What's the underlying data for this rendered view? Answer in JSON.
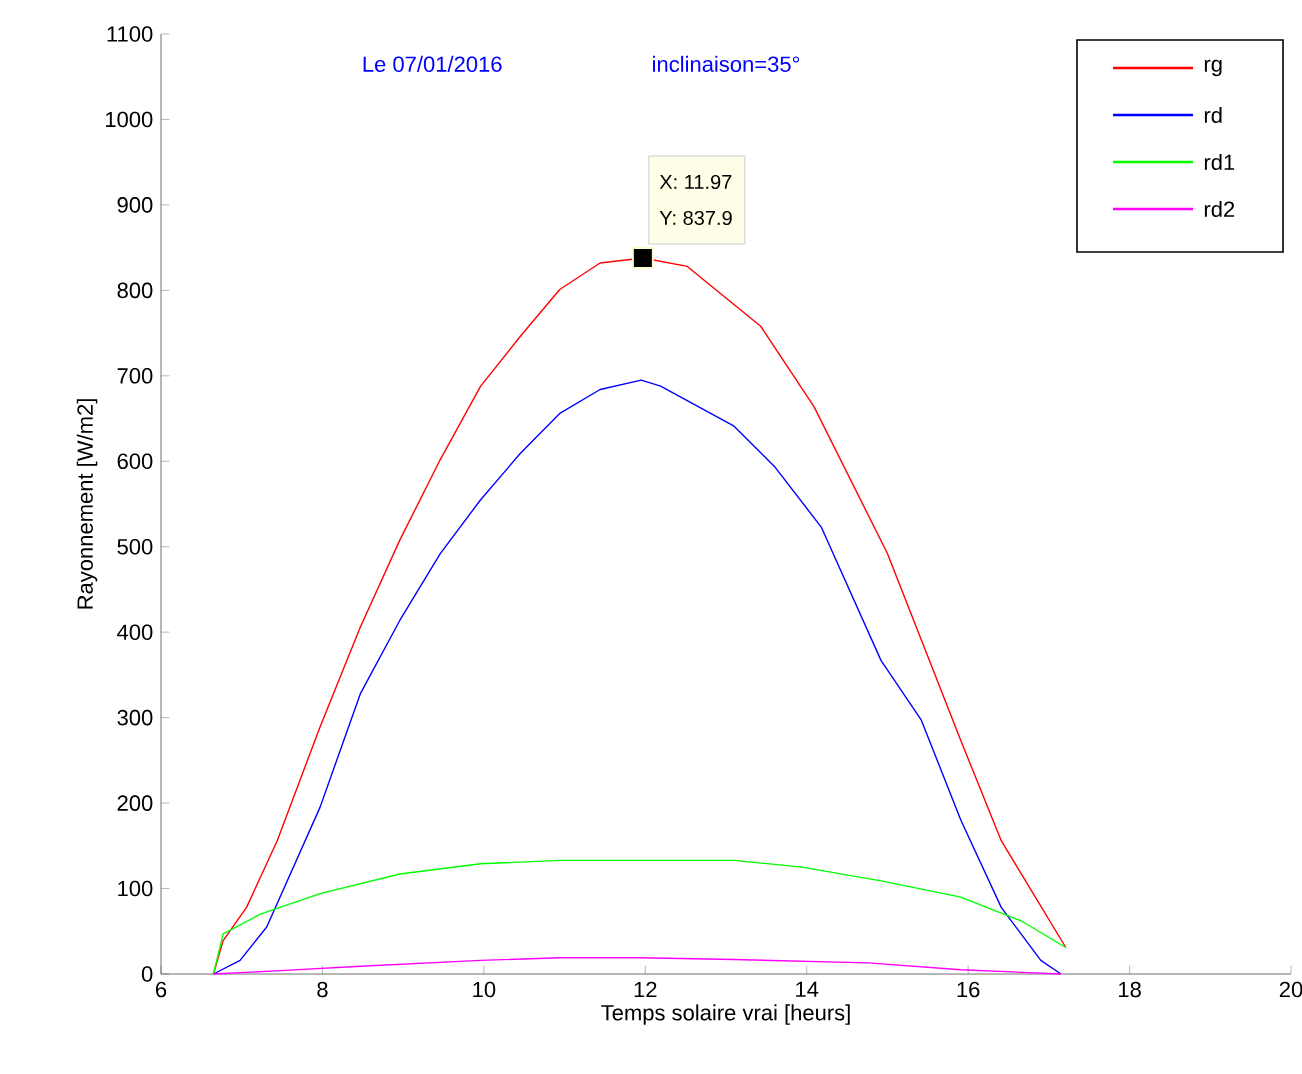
{
  "chart_data": {
    "type": "line",
    "title": "Le 07/01/2016",
    "subtitle": "inclinaison=35°",
    "xlabel": "Temps solaire vrai [heurs]",
    "ylabel": "Rayonnement [W/m2]",
    "xlim": [
      6,
      20
    ],
    "xticks": [
      6,
      8,
      10,
      12,
      14,
      16,
      18,
      20
    ],
    "ylim": [
      0,
      1100
    ],
    "yticks": [
      0,
      100,
      200,
      300,
      400,
      500,
      600,
      700,
      800,
      900,
      1000,
      1100
    ],
    "legend": "top right",
    "grid": false,
    "annotations": [
      "X: 11.97",
      "Y: 837.9"
    ],
    "series": [
      {
        "name": "rg",
        "color": "#ff0000",
        "x": [
          6.65,
          6.77,
          7.06,
          7.44,
          7.97,
          8.47,
          8.96,
          9.46,
          9.96,
          10.45,
          10.94,
          11.44,
          11.97,
          12.52,
          13.43,
          14.09,
          15.0,
          15.91,
          16.41,
          17.21
        ],
        "values": [
          0,
          39,
          78,
          156,
          289,
          406,
          508,
          602,
          688,
          746,
          801,
          832,
          837.9,
          828,
          758,
          664,
          492,
          273,
          156,
          31
        ]
      },
      {
        "name": "rd",
        "color": "#0000ff",
        "x": [
          6.65,
          6.98,
          7.31,
          7.97,
          8.47,
          8.96,
          9.46,
          9.96,
          10.45,
          10.94,
          11.44,
          11.95,
          12.19,
          13.1,
          13.6,
          14.18,
          14.92,
          15.42,
          15.91,
          16.41,
          16.9,
          17.15
        ],
        "values": [
          0,
          16,
          55,
          195,
          328,
          414,
          492,
          555,
          609,
          656,
          684,
          695,
          688,
          641,
          594,
          523,
          367,
          297,
          180,
          78,
          16,
          0
        ]
      },
      {
        "name": "rd1",
        "color": "#00ff00",
        "x": [
          6.65,
          6.77,
          7.23,
          7.97,
          8.96,
          9.96,
          10.95,
          11.94,
          13.1,
          13.94,
          14.92,
          15.91,
          16.66,
          17.21
        ],
        "values": [
          0,
          47,
          70,
          94,
          117,
          129,
          133,
          133,
          133,
          125,
          109,
          90,
          62,
          31
        ]
      },
      {
        "name": "rd2",
        "color": "#ff00ff",
        "x": [
          6.65,
          7.48,
          8.47,
          9.96,
          10.95,
          11.94,
          13.1,
          14.76,
          15.91,
          17.15
        ],
        "values": [
          0,
          4,
          9,
          16,
          19,
          19,
          17,
          13,
          5,
          0
        ]
      }
    ]
  }
}
